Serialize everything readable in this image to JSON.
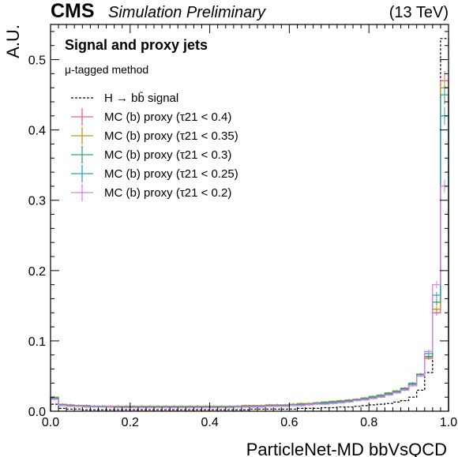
{
  "header": {
    "experiment": "CMS",
    "status": "Simulation Preliminary",
    "energy": "(13 TeV)"
  },
  "panel": {
    "title": "Signal and proxy jets",
    "subtitle": "μ-tagged method"
  },
  "chart_data": {
    "type": "line",
    "subtype": "step-histogram",
    "xlabel": "ParticleNet-MD bbVsQCD",
    "ylabel": "A.U.",
    "xlim": [
      0,
      1
    ],
    "ylim": [
      0,
      0.55
    ],
    "xticks": [
      0.0,
      0.2,
      0.4,
      0.6,
      0.8,
      1.0
    ],
    "xtick_labels": [
      "0.0",
      "0.2",
      "0.4",
      "0.6",
      "0.8",
      "1.0"
    ],
    "yticks": [
      0.0,
      0.1,
      0.2,
      0.3,
      0.4,
      0.5
    ],
    "ytick_labels": [
      "0.0",
      "0.1",
      "0.2",
      "0.3",
      "0.4",
      "0.5"
    ],
    "bin_edges": [
      0.0,
      0.02,
      0.04,
      0.06,
      0.08,
      0.1,
      0.12,
      0.14,
      0.16,
      0.18,
      0.2,
      0.22,
      0.24,
      0.26,
      0.28,
      0.3,
      0.32,
      0.34,
      0.36,
      0.38,
      0.4,
      0.42,
      0.44,
      0.46,
      0.48,
      0.5,
      0.52,
      0.54,
      0.56,
      0.58,
      0.6,
      0.62,
      0.64,
      0.66,
      0.68,
      0.7,
      0.72,
      0.74,
      0.76,
      0.78,
      0.8,
      0.82,
      0.84,
      0.86,
      0.88,
      0.9,
      0.92,
      0.94,
      0.96,
      0.98,
      1.0
    ],
    "legend_position": "top-left",
    "series": [
      {
        "name": "H → bb̄ signal",
        "style": "dashed",
        "color": "#000000",
        "values": [
          0.01,
          0.004,
          0.003,
          0.003,
          0.002,
          0.002,
          0.002,
          0.002,
          0.002,
          0.002,
          0.002,
          0.002,
          0.002,
          0.002,
          0.002,
          0.002,
          0.002,
          0.002,
          0.002,
          0.002,
          0.002,
          0.002,
          0.002,
          0.002,
          0.002,
          0.003,
          0.003,
          0.003,
          0.003,
          0.003,
          0.003,
          0.004,
          0.004,
          0.004,
          0.005,
          0.005,
          0.006,
          0.006,
          0.007,
          0.008,
          0.009,
          0.01,
          0.011,
          0.013,
          0.015,
          0.02,
          0.03,
          0.055,
          0.155,
          0.53
        ]
      },
      {
        "name": "MC (b) proxy (τ21 < 0.4)",
        "style": "solid",
        "color": "#f0607a",
        "values": [
          0.02,
          0.01,
          0.009,
          0.008,
          0.008,
          0.007,
          0.007,
          0.007,
          0.007,
          0.007,
          0.007,
          0.007,
          0.007,
          0.007,
          0.007,
          0.007,
          0.007,
          0.007,
          0.007,
          0.007,
          0.007,
          0.007,
          0.007,
          0.007,
          0.008,
          0.008,
          0.008,
          0.009,
          0.009,
          0.009,
          0.01,
          0.011,
          0.011,
          0.012,
          0.013,
          0.014,
          0.015,
          0.016,
          0.017,
          0.019,
          0.021,
          0.023,
          0.026,
          0.029,
          0.033,
          0.04,
          0.052,
          0.075,
          0.14,
          0.47
        ]
      },
      {
        "name": "MC (b) proxy (τ21 < 0.35)",
        "style": "solid",
        "color": "#b59a1c",
        "values": [
          0.02,
          0.01,
          0.009,
          0.008,
          0.008,
          0.007,
          0.007,
          0.007,
          0.007,
          0.007,
          0.007,
          0.007,
          0.007,
          0.007,
          0.007,
          0.007,
          0.007,
          0.007,
          0.007,
          0.007,
          0.007,
          0.007,
          0.007,
          0.007,
          0.008,
          0.008,
          0.008,
          0.009,
          0.009,
          0.009,
          0.01,
          0.011,
          0.011,
          0.012,
          0.013,
          0.014,
          0.015,
          0.016,
          0.017,
          0.019,
          0.021,
          0.023,
          0.026,
          0.029,
          0.033,
          0.04,
          0.053,
          0.077,
          0.145,
          0.46
        ]
      },
      {
        "name": "MC (b) proxy (τ21 < 0.3)",
        "style": "solid",
        "color": "#2aa37a",
        "values": [
          0.019,
          0.009,
          0.008,
          0.008,
          0.007,
          0.007,
          0.007,
          0.006,
          0.006,
          0.006,
          0.006,
          0.006,
          0.006,
          0.006,
          0.006,
          0.006,
          0.006,
          0.006,
          0.006,
          0.006,
          0.006,
          0.006,
          0.006,
          0.007,
          0.007,
          0.007,
          0.007,
          0.008,
          0.008,
          0.008,
          0.009,
          0.01,
          0.01,
          0.011,
          0.012,
          0.013,
          0.014,
          0.015,
          0.016,
          0.018,
          0.02,
          0.022,
          0.025,
          0.028,
          0.032,
          0.039,
          0.052,
          0.078,
          0.155,
          0.45
        ]
      },
      {
        "name": "MC (b) proxy (τ21 < 0.25)",
        "style": "solid",
        "color": "#2aa0c8",
        "values": [
          0.018,
          0.009,
          0.008,
          0.007,
          0.007,
          0.007,
          0.006,
          0.006,
          0.006,
          0.006,
          0.006,
          0.006,
          0.006,
          0.006,
          0.006,
          0.006,
          0.006,
          0.006,
          0.006,
          0.006,
          0.006,
          0.006,
          0.006,
          0.006,
          0.006,
          0.007,
          0.007,
          0.007,
          0.008,
          0.008,
          0.009,
          0.009,
          0.01,
          0.011,
          0.011,
          0.012,
          0.013,
          0.014,
          0.016,
          0.017,
          0.019,
          0.021,
          0.024,
          0.027,
          0.031,
          0.038,
          0.052,
          0.082,
          0.165,
          0.42
        ]
      },
      {
        "name": "MC (b) proxy (τ21 < 0.2)",
        "style": "solid",
        "color": "#e07ee8",
        "values": [
          0.017,
          0.008,
          0.007,
          0.007,
          0.006,
          0.006,
          0.006,
          0.006,
          0.005,
          0.005,
          0.005,
          0.005,
          0.005,
          0.005,
          0.005,
          0.005,
          0.005,
          0.005,
          0.005,
          0.005,
          0.005,
          0.005,
          0.005,
          0.006,
          0.006,
          0.006,
          0.006,
          0.007,
          0.007,
          0.007,
          0.008,
          0.008,
          0.009,
          0.01,
          0.01,
          0.011,
          0.012,
          0.013,
          0.015,
          0.016,
          0.018,
          0.02,
          0.023,
          0.026,
          0.03,
          0.036,
          0.05,
          0.085,
          0.18,
          0.32
        ]
      }
    ]
  }
}
